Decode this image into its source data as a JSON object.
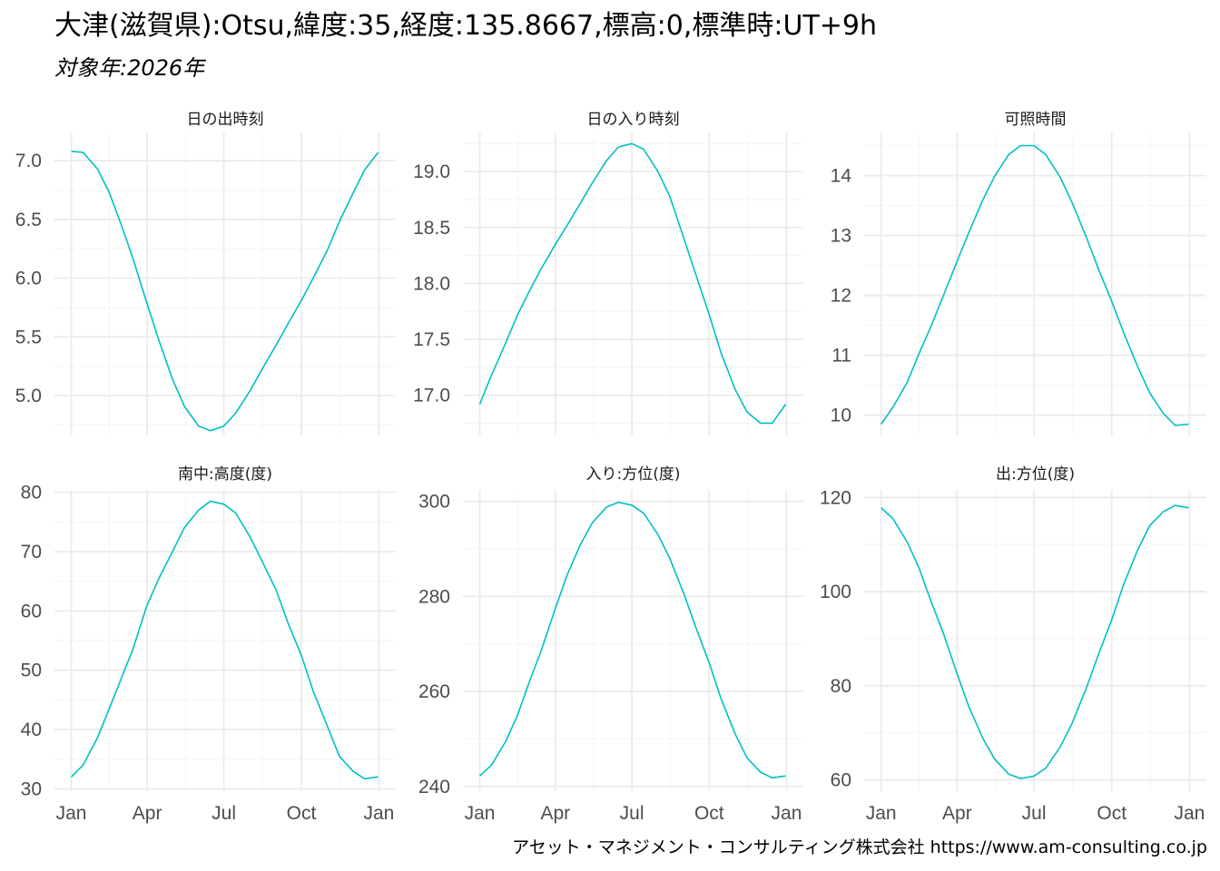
{
  "title": "大津(滋賀県):Otsu,緯度:35,経度:135.8667,標高:0,標準時:UT+9h",
  "subtitle": "対象年:2026年",
  "caption": "アセット・マネジメント・コンサルティング株式会社 https://www.am-consulting.co.jp",
  "colors": {
    "line": "#00BFC4",
    "grid_major": "#EBEBEB",
    "grid_minor": "#F5F5F5",
    "tick_text": "#4D4D4D"
  },
  "chart_data": [
    {
      "type": "line",
      "facet": "日の出時刻",
      "x_ticks": [
        "Jan",
        "Apr",
        "Jul",
        "Oct",
        "Jan"
      ],
      "y_ticks": [
        7.0,
        6.5,
        6.0,
        5.5,
        5.0
      ],
      "ylim": [
        4.66,
        7.24
      ],
      "series": [
        {
          "x": [
            "2026-01-01",
            "2026-01-15",
            "2026-02-01",
            "2026-02-15",
            "2026-03-01",
            "2026-03-15",
            "2026-04-01",
            "2026-04-15",
            "2026-05-01",
            "2026-05-15",
            "2026-06-01",
            "2026-06-15",
            "2026-07-01",
            "2026-07-15",
            "2026-08-01",
            "2026-08-15",
            "2026-09-01",
            "2026-09-15",
            "2026-10-01",
            "2026-10-15",
            "2026-11-01",
            "2026-11-15",
            "2026-12-01",
            "2026-12-15",
            "2026-12-31"
          ],
          "y": [
            7.08,
            7.07,
            6.93,
            6.73,
            6.46,
            6.17,
            5.78,
            5.47,
            5.14,
            4.91,
            4.74,
            4.7,
            4.74,
            4.85,
            5.04,
            5.22,
            5.43,
            5.61,
            5.81,
            6.0,
            6.24,
            6.48,
            6.72,
            6.92,
            7.07
          ]
        }
      ]
    },
    {
      "type": "line",
      "facet": "日の入り時刻",
      "x_ticks": [
        "Jan",
        "Apr",
        "Jul",
        "Oct",
        "Jan"
      ],
      "y_ticks": [
        19.0,
        18.5,
        18.0,
        17.5,
        17.0
      ],
      "ylim": [
        16.64,
        19.35
      ],
      "series": [
        {
          "x": [
            "2026-01-01",
            "2026-01-15",
            "2026-02-01",
            "2026-02-15",
            "2026-03-01",
            "2026-03-15",
            "2026-04-01",
            "2026-04-15",
            "2026-05-01",
            "2026-05-15",
            "2026-06-01",
            "2026-06-15",
            "2026-07-01",
            "2026-07-15",
            "2026-08-01",
            "2026-08-15",
            "2026-09-01",
            "2026-09-15",
            "2026-10-01",
            "2026-10-15",
            "2026-11-01",
            "2026-11-15",
            "2026-12-01",
            "2026-12-15",
            "2026-12-31"
          ],
          "y": [
            16.92,
            17.18,
            17.47,
            17.72,
            17.93,
            18.13,
            18.35,
            18.52,
            18.72,
            18.9,
            19.1,
            19.22,
            19.25,
            19.2,
            19.0,
            18.78,
            18.4,
            18.08,
            17.72,
            17.38,
            17.05,
            16.85,
            16.75,
            16.75,
            16.92
          ]
        }
      ]
    },
    {
      "type": "line",
      "facet": "可照時間",
      "x_ticks": [
        "Jan",
        "Apr",
        "Jul",
        "Oct",
        "Jan"
      ],
      "y_ticks": [
        14,
        13,
        12,
        11,
        10
      ],
      "ylim": [
        9.66,
        14.72
      ],
      "series": [
        {
          "x": [
            "2026-01-01",
            "2026-01-15",
            "2026-02-01",
            "2026-02-15",
            "2026-03-01",
            "2026-03-15",
            "2026-04-01",
            "2026-04-15",
            "2026-05-01",
            "2026-05-15",
            "2026-06-01",
            "2026-06-15",
            "2026-07-01",
            "2026-07-15",
            "2026-08-01",
            "2026-08-15",
            "2026-09-01",
            "2026-09-15",
            "2026-10-01",
            "2026-10-15",
            "2026-11-01",
            "2026-11-15",
            "2026-12-01",
            "2026-12-15",
            "2026-12-31"
          ],
          "y": [
            9.85,
            10.13,
            10.55,
            11.03,
            11.48,
            11.97,
            12.57,
            13.05,
            13.58,
            13.98,
            14.35,
            14.5,
            14.5,
            14.35,
            13.97,
            13.55,
            12.97,
            12.45,
            11.9,
            11.38,
            10.8,
            10.37,
            10.03,
            9.83,
            9.85
          ]
        }
      ]
    },
    {
      "type": "line",
      "facet": "南中:高度(度)",
      "x_ticks": [
        "Jan",
        "Apr",
        "Jul",
        "Oct",
        "Jan"
      ],
      "y_ticks": [
        80,
        70,
        60,
        50,
        40,
        30
      ],
      "ylim": [
        29.6,
        80.4
      ],
      "series": [
        {
          "x": [
            "2026-01-01",
            "2026-01-15",
            "2026-02-01",
            "2026-02-15",
            "2026-03-01",
            "2026-03-15",
            "2026-04-01",
            "2026-04-15",
            "2026-05-01",
            "2026-05-15",
            "2026-06-01",
            "2026-06-15",
            "2026-07-01",
            "2026-07-15",
            "2026-08-01",
            "2026-08-15",
            "2026-09-01",
            "2026-09-15",
            "2026-10-01",
            "2026-10-15",
            "2026-11-01",
            "2026-11-15",
            "2026-12-01",
            "2026-12-15",
            "2026-12-31"
          ],
          "y": [
            32.0,
            34.0,
            38.6,
            43.5,
            48.5,
            53.5,
            61.0,
            65.5,
            70.0,
            74.0,
            77.0,
            78.5,
            78.0,
            76.5,
            72.5,
            68.5,
            63.5,
            58.0,
            52.5,
            46.5,
            40.5,
            35.5,
            33.0,
            31.7,
            32.0
          ]
        }
      ]
    },
    {
      "type": "line",
      "facet": "入り:方位(度)",
      "x_ticks": [
        "Jan",
        "Apr",
        "Jul",
        "Oct",
        "Jan"
      ],
      "y_ticks": [
        300,
        280,
        260,
        240
      ],
      "ylim": [
        239.0,
        302.4
      ],
      "series": [
        {
          "x": [
            "2026-01-01",
            "2026-01-15",
            "2026-02-01",
            "2026-02-15",
            "2026-03-01",
            "2026-03-15",
            "2026-04-01",
            "2026-04-15",
            "2026-05-01",
            "2026-05-15",
            "2026-06-01",
            "2026-06-15",
            "2026-07-01",
            "2026-07-15",
            "2026-08-01",
            "2026-08-15",
            "2026-09-01",
            "2026-09-15",
            "2026-10-01",
            "2026-10-15",
            "2026-11-01",
            "2026-11-15",
            "2026-12-01",
            "2026-12-15",
            "2026-12-31"
          ],
          "y": [
            242.2,
            244.5,
            249.5,
            255.0,
            262.0,
            268.5,
            277.5,
            284.5,
            291.0,
            295.5,
            298.8,
            299.8,
            299.2,
            297.5,
            293.0,
            288.0,
            280.5,
            273.5,
            266.0,
            258.5,
            251.0,
            246.0,
            243.0,
            241.8,
            242.2
          ]
        }
      ]
    },
    {
      "type": "line",
      "facet": "出:方位(度)",
      "x_ticks": [
        "Jan",
        "Apr",
        "Jul",
        "Oct",
        "Jan"
      ],
      "y_ticks": [
        120,
        100,
        80,
        60
      ],
      "ylim": [
        57.6,
        121.6
      ],
      "series": [
        {
          "x": [
            "2026-01-01",
            "2026-01-15",
            "2026-02-01",
            "2026-02-15",
            "2026-03-01",
            "2026-03-15",
            "2026-04-01",
            "2026-04-15",
            "2026-05-01",
            "2026-05-15",
            "2026-06-01",
            "2026-06-15",
            "2026-07-01",
            "2026-07-15",
            "2026-08-01",
            "2026-08-15",
            "2026-09-01",
            "2026-09-15",
            "2026-10-01",
            "2026-10-15",
            "2026-11-01",
            "2026-11-15",
            "2026-12-01",
            "2026-12-15",
            "2026-12-31"
          ],
          "y": [
            117.8,
            115.5,
            110.5,
            105.0,
            98.0,
            91.5,
            82.5,
            75.5,
            69.0,
            64.5,
            61.2,
            60.3,
            60.8,
            62.5,
            67.0,
            72.0,
            79.5,
            86.5,
            94.0,
            101.5,
            109.0,
            114.0,
            117.0,
            118.3,
            117.8
          ]
        }
      ]
    }
  ]
}
